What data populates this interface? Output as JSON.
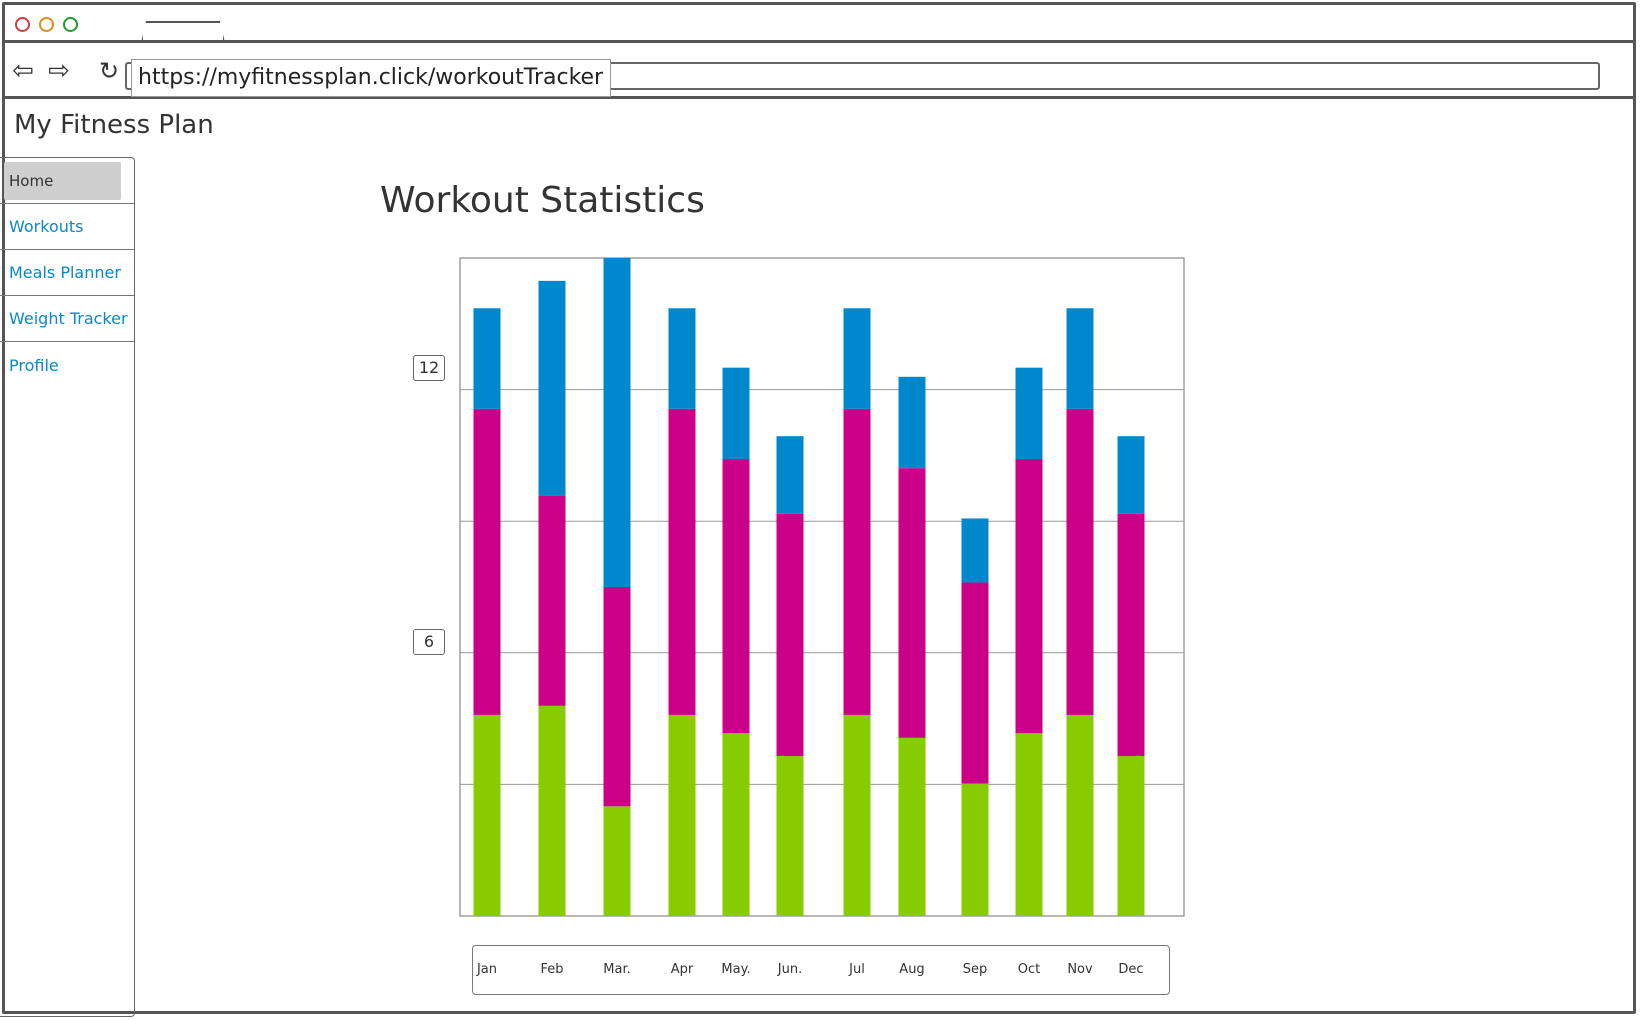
{
  "browser": {
    "url": "https://myfitnessplan.click/workoutTracker"
  },
  "app": {
    "title": "My Fitness Plan"
  },
  "sidebar": {
    "items": [
      {
        "label": "Home",
        "active": true
      },
      {
        "label": "Workouts",
        "active": false
      },
      {
        "label": "Meals Planner",
        "active": false
      },
      {
        "label": "Weight Tracker",
        "active": false
      },
      {
        "label": "Profile",
        "active": false
      }
    ]
  },
  "main": {
    "title": "Workout Statistics"
  },
  "colors": {
    "series_bottom": "#88cc00",
    "series_middle": "#cc0088",
    "series_top": "#0088cc",
    "link": "#0a88c8"
  },
  "chart_data": {
    "type": "bar",
    "stacked": true,
    "categories": [
      "Jan",
      "Feb",
      "Mar.",
      "Apr",
      "May.",
      "Jun.",
      "Jul",
      "Aug",
      "Sep",
      "Oct",
      "Nov",
      "Dec"
    ],
    "yticks": [
      "12",
      "6"
    ],
    "ylim": [
      0,
      14.4
    ],
    "grid": true,
    "series": [
      {
        "color": "#88cc00",
        "values": [
          4.4,
          4.6,
          2.4,
          4.4,
          4.0,
          3.5,
          4.4,
          3.9,
          2.9,
          4.0,
          4.4,
          3.5
        ]
      },
      {
        "color": "#cc0088",
        "values": [
          6.7,
          4.6,
          4.8,
          6.7,
          6.0,
          5.3,
          6.7,
          5.9,
          4.4,
          6.0,
          6.7,
          5.3
        ]
      },
      {
        "color": "#0088cc",
        "values": [
          2.2,
          4.7,
          7.2,
          2.2,
          2.0,
          1.7,
          2.2,
          2.0,
          1.4,
          2.0,
          2.2,
          1.7
        ]
      }
    ]
  }
}
